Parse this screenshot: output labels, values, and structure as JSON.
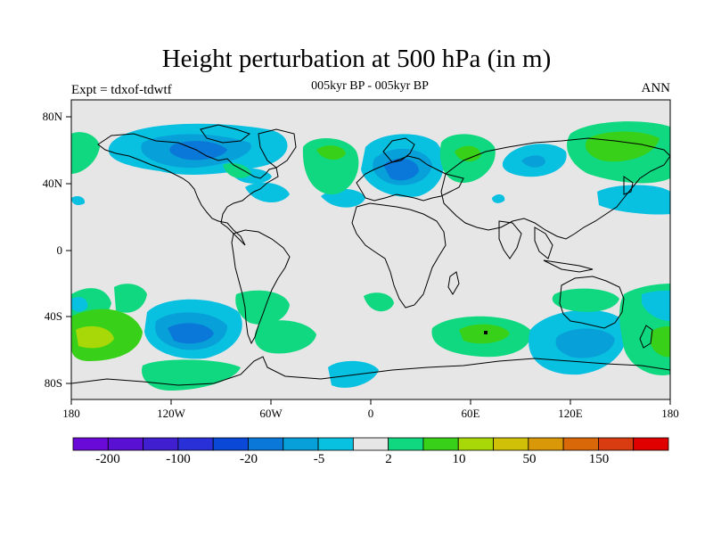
{
  "title": "Height perturbation at 500 hPa (in m)",
  "subtitle": "005kyr BP - 005kyr BP",
  "experiment_label": "Expt = tdxof-tdwtf",
  "season_label": "ANN",
  "colors": {
    "ocean_background": "#e6e6e6",
    "coastline": "#000000",
    "palette": [
      "#6a0ad8",
      "#5a10d2",
      "#3f1fd0",
      "#2a30d8",
      "#0a48d8",
      "#0a78d8",
      "#08a0d8",
      "#08c0e0",
      "#e6e6e6",
      "#10d880",
      "#38d018",
      "#a8d808",
      "#d0c008",
      "#d89808",
      "#d86808",
      "#d83c10",
      "#e00000"
    ]
  },
  "latitude_labels": [
    "80N",
    "40N",
    "0",
    "40S",
    "80S"
  ],
  "longitude_labels": [
    "180",
    "120W",
    "60W",
    "0",
    "60E",
    "120E",
    "180"
  ],
  "colorbar_labels": [
    "-200",
    "-100",
    "-20",
    "-5",
    "2",
    "10",
    "50",
    "150"
  ]
}
